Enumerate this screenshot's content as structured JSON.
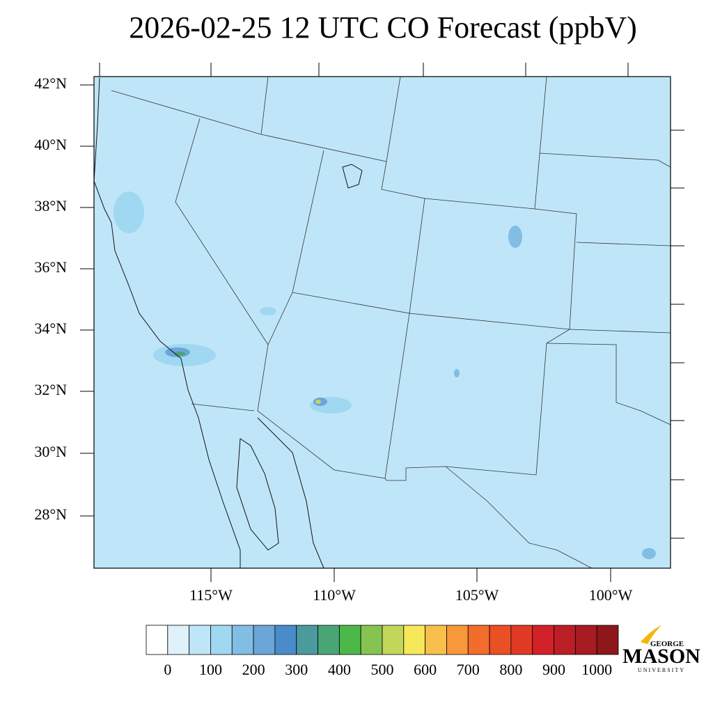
{
  "title": "2026-02-25 12 UTC CO Forecast (ppbV)",
  "lat_labels": [
    "42°N",
    "40°N",
    "38°N",
    "36°N",
    "34°N",
    "32°N",
    "30°N",
    "28°N"
  ],
  "lon_labels": [
    "115°W",
    "110°W",
    "105°W",
    "100°W"
  ],
  "colorbar": {
    "colors": [
      "#ffffff",
      "#dff1fb",
      "#bfe6f8",
      "#a0d8f2",
      "#82bde3",
      "#6aa6d8",
      "#4a8cc9",
      "#4a9a9e",
      "#4aa574",
      "#4cb84a",
      "#86c451",
      "#c2d65a",
      "#f7e85a",
      "#f8bf4c",
      "#f7983b",
      "#f26c2b",
      "#ea4f25",
      "#e03a25",
      "#d32129",
      "#bc1e26",
      "#a71b22",
      "#8e171b"
    ],
    "labels": [
      "0",
      "100",
      "200",
      "300",
      "400",
      "500",
      "600",
      "700",
      "800",
      "900",
      "1000"
    ]
  },
  "logo": {
    "top": "GEORGE",
    "main": "MASON",
    "bottom": "UNIVERSITY"
  }
}
